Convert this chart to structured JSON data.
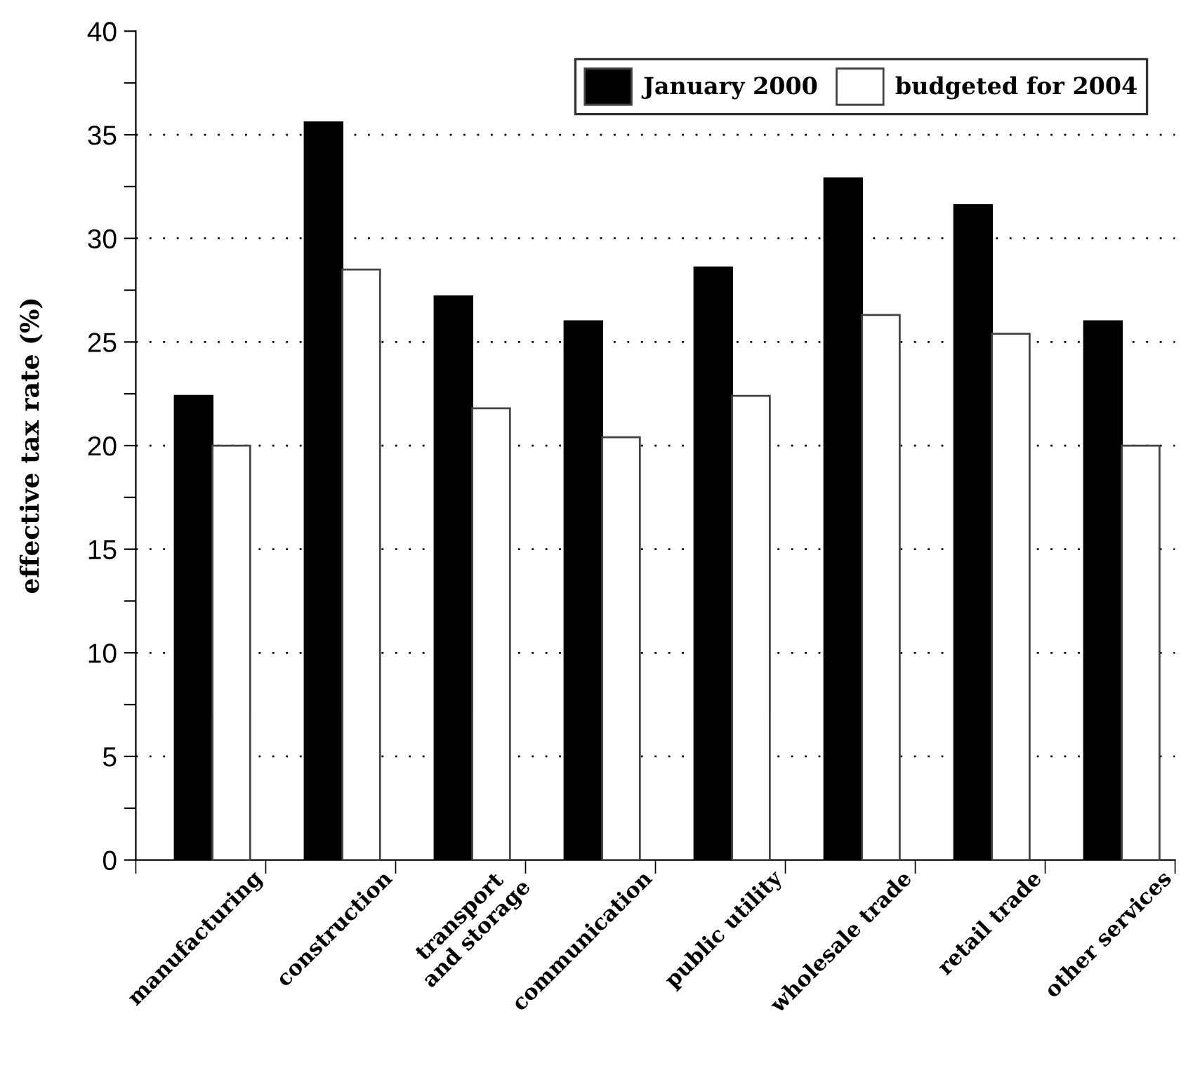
{
  "chart_data": {
    "type": "bar",
    "ylabel": "effective tax rate (%)",
    "categories": [
      "manufacturing",
      "construction",
      "transport\nand storage",
      "communication",
      "public utility",
      "wholesale trade",
      "retail trade",
      "other services"
    ],
    "series": [
      {
        "name": "January 2000",
        "color": "#000000",
        "values": [
          22.4,
          35.6,
          27.2,
          26.0,
          28.6,
          32.9,
          31.6,
          26.0
        ]
      },
      {
        "name": "budgeted for 2004",
        "color": "#ffffff",
        "values": [
          20.0,
          28.5,
          21.8,
          20.4,
          22.4,
          26.3,
          25.4,
          20.0
        ]
      }
    ],
    "ylim": [
      0,
      40
    ],
    "yticks": [
      0,
      {
        "value": 2.5,
        "label": null
      },
      5,
      {
        "value": 7.5,
        "label": null
      },
      10,
      {
        "value": 12.5,
        "label": null
      },
      15,
      {
        "value": 17.5,
        "label": null
      },
      20,
      {
        "value": 22.5,
        "label": null
      },
      25,
      {
        "value": 27.5,
        "label": null
      },
      30,
      {
        "value": 32.5,
        "label": null
      },
      35,
      {
        "value": 37.5,
        "label": null
      },
      40
    ],
    "grid": "y",
    "legend": "top right"
  }
}
